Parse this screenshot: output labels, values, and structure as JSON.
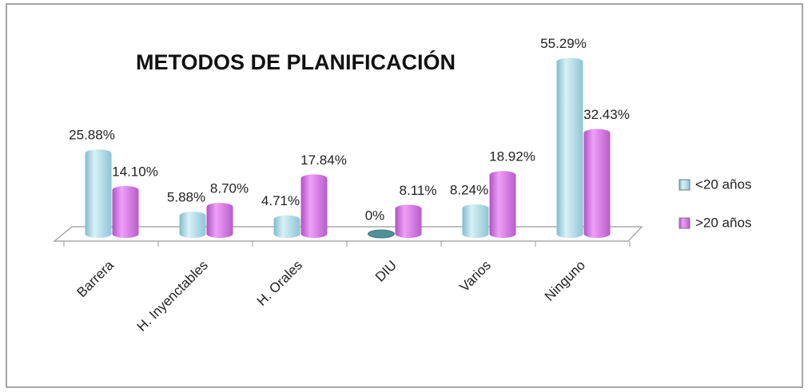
{
  "chart_data": {
    "type": "bar",
    "title": "METODOS DE PLANIFICACIÓN",
    "categories": [
      "Barrera",
      "H. Inyenctables",
      "H. Orales",
      "DIU",
      "Varios",
      "Ninguno"
    ],
    "series": [
      {
        "name": "<20 años",
        "color": "#a9dde8",
        "values": [
          25.88,
          5.88,
          4.71,
          0,
          8.24,
          55.29
        ],
        "value_labels": [
          "25.88%",
          "5.88%",
          "4.71%",
          "0%",
          "8.24%",
          "55.29%"
        ]
      },
      {
        "name": ">20 años",
        "color": "#d77fe3",
        "values": [
          14.1,
          8.7,
          17.84,
          8.11,
          18.92,
          32.43
        ],
        "value_labels": [
          "14.10%",
          "8.70%",
          "17.84%",
          "8.11%",
          "18.92%",
          "32.43%"
        ]
      }
    ],
    "legend": "right"
  }
}
